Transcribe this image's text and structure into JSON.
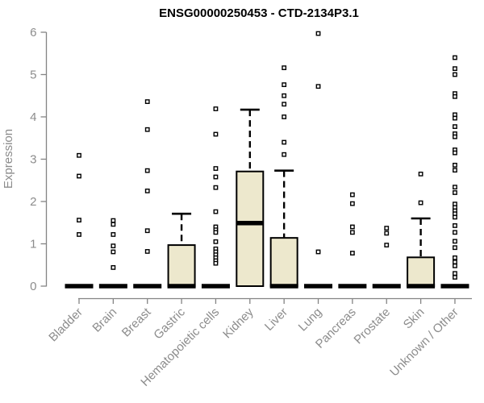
{
  "chart_data": {
    "type": "boxplot",
    "title": "ENSG00000250453 - CTD-2134P3.1",
    "xlabel": "",
    "ylabel": "Expression",
    "ylim": [
      0,
      6
    ],
    "yticks": [
      0,
      1,
      2,
      3,
      4,
      5,
      6
    ],
    "grid": false,
    "legend": "none",
    "categories": [
      "Bladder",
      "Brain",
      "Breast",
      "Gastric",
      "Hematopoietic cells",
      "Kidney",
      "Liver",
      "Lung",
      "Pancreas",
      "Prostate",
      "Skin",
      "Unknown / Other"
    ],
    "series": [
      {
        "category": "Bladder",
        "q1": 0,
        "median": 0,
        "q3": 0,
        "whisker_low": 0,
        "whisker_high": 0,
        "outliers": [
          3.09,
          2.6,
          1.56,
          1.22
        ]
      },
      {
        "category": "Brain",
        "q1": 0,
        "median": 0,
        "q3": 0,
        "whisker_low": 0,
        "whisker_high": 0,
        "outliers": [
          1.55,
          1.46,
          1.22,
          0.95,
          0.81,
          0.44
        ]
      },
      {
        "category": "Breast",
        "q1": 0,
        "median": 0,
        "q3": 0,
        "whisker_low": 0,
        "whisker_high": 0,
        "outliers": [
          4.36,
          3.7,
          2.73,
          2.25,
          1.31,
          0.82
        ]
      },
      {
        "category": "Gastric",
        "q1": 0,
        "median": 0,
        "q3": 0.97,
        "whisker_low": 0,
        "whisker_high": 1.71,
        "outliers": []
      },
      {
        "category": "Hematopoietic cells",
        "q1": 0,
        "median": 0,
        "q3": 0,
        "whisker_low": 0,
        "whisker_high": 0,
        "outliers": [
          4.19,
          3.59,
          2.78,
          2.58,
          2.33,
          1.76,
          1.4,
          1.33,
          1.27,
          1.05,
          0.88,
          0.81,
          0.74,
          0.67,
          0.6,
          0.54
        ]
      },
      {
        "category": "Kidney",
        "q1": 0,
        "median": 1.49,
        "q3": 2.71,
        "whisker_low": 0,
        "whisker_high": 4.17,
        "outliers": []
      },
      {
        "category": "Liver",
        "q1": 0,
        "median": 0,
        "q3": 1.14,
        "whisker_low": 0,
        "whisker_high": 2.73,
        "outliers": [
          5.16,
          4.76,
          4.5,
          4.3,
          4.0,
          3.4,
          3.11
        ]
      },
      {
        "category": "Lung",
        "q1": 0,
        "median": 0,
        "q3": 0,
        "whisker_low": 0,
        "whisker_high": 0,
        "outliers": [
          5.97,
          4.72,
          0.81
        ]
      },
      {
        "category": "Pancreas",
        "q1": 0,
        "median": 0,
        "q3": 0,
        "whisker_low": 0,
        "whisker_high": 0,
        "outliers": [
          2.16,
          1.95,
          1.4,
          1.27,
          0.78
        ]
      },
      {
        "category": "Prostate",
        "q1": 0,
        "median": 0,
        "q3": 0,
        "whisker_low": 0,
        "whisker_high": 0,
        "outliers": [
          1.37,
          1.25,
          0.97
        ]
      },
      {
        "category": "Skin",
        "q1": 0,
        "median": 0,
        "q3": 0.68,
        "whisker_low": 0,
        "whisker_high": 1.6,
        "outliers": [
          2.65,
          1.97
        ]
      },
      {
        "category": "Unknown / Other",
        "q1": 0,
        "median": 0,
        "q3": 0,
        "whisker_low": 0,
        "whisker_high": 0,
        "outliers": [
          5.4,
          5.14,
          5.0,
          4.55,
          4.48,
          4.05,
          3.97,
          3.77,
          3.6,
          3.53,
          3.22,
          3.15,
          2.86,
          2.74,
          2.34,
          2.21,
          1.94,
          1.86,
          1.78,
          1.71,
          1.63,
          1.43,
          1.27,
          1.06,
          0.91,
          0.67,
          0.57,
          0.48,
          0.3,
          0.21
        ]
      }
    ],
    "colors": {
      "box_fill": "#EDE8CD",
      "box_stroke": "#000000",
      "median": "#000000",
      "outlier_fill": "#ffffff",
      "axis_line": "#848484",
      "tick_label": "#8c8c8c",
      "title": "#000000",
      "background": "#ffffff"
    }
  }
}
